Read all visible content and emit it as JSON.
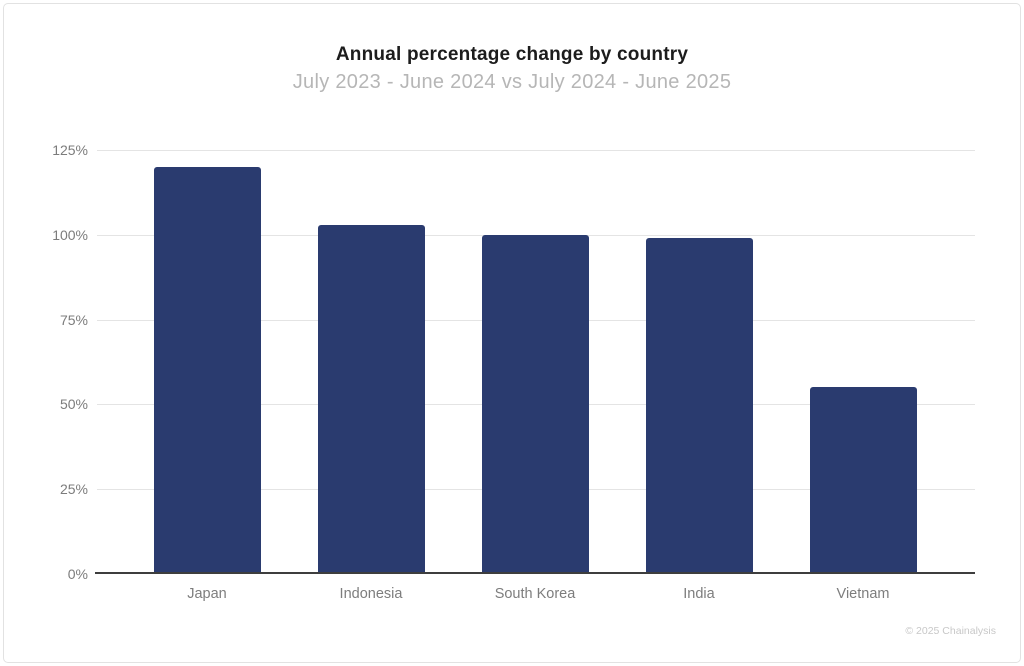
{
  "header": {
    "title": "Annual percentage change by country",
    "subtitle": "July 2023 - June 2024 vs July 2024 - June 2025"
  },
  "chart_data": {
    "type": "bar",
    "title": "Annual percentage change by country",
    "subtitle": "July 2023 - June 2024 vs July 2024 - June 2025",
    "categories": [
      "Japan",
      "Indonesia",
      "South Korea",
      "India",
      "Vietnam"
    ],
    "values": [
      120,
      103,
      100,
      99,
      55
    ],
    "value_unit": "%",
    "xlabel": "",
    "ylabel": "",
    "ylim": [
      0,
      125
    ],
    "yticks": [
      "0%",
      "25%",
      "50%",
      "75%",
      "100%",
      "125%"
    ],
    "grid": true,
    "legend": false,
    "bar_color": "#2a3b6f",
    "gridline_color": "#e4e4e4",
    "axis_color": "#3e3e3e"
  },
  "footer": {
    "copyright": "© 2025 Chainalysis"
  }
}
